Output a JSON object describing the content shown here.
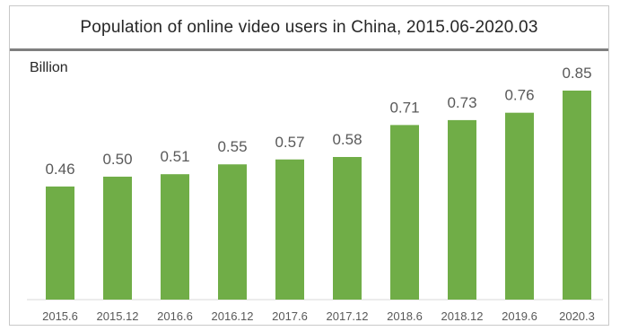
{
  "chart_data": {
    "type": "bar",
    "title": "Population of online video users in China, 2015.06-2020.03",
    "unit_label": "Billion",
    "categories": [
      "2015.6",
      "2015.12",
      "2016.6",
      "2016.12",
      "2017.6",
      "2017.12",
      "2018.6",
      "2018.12",
      "2019.6",
      "2020.3"
    ],
    "values": [
      0.46,
      0.5,
      0.51,
      0.55,
      0.57,
      0.58,
      0.71,
      0.73,
      0.76,
      0.85
    ],
    "data_labels": [
      "0.46",
      "0.50",
      "0.51",
      "0.55",
      "0.57",
      "0.58",
      "0.71",
      "0.73",
      "0.76",
      "0.85"
    ],
    "ylim": [
      0,
      0.85
    ],
    "grid": false,
    "bar_color": "#70ad47",
    "axis_color": "#d9d9d9"
  }
}
